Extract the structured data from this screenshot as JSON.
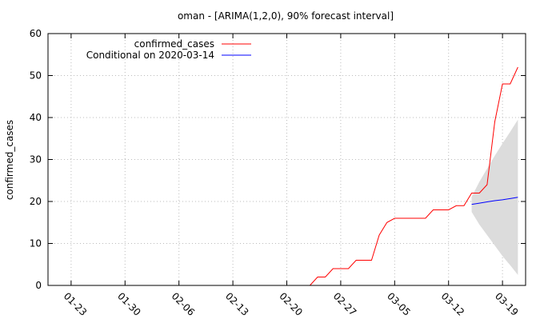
{
  "chart_data": {
    "type": "line",
    "title": "oman -  [ARIMA(1,2,0), 90% forecast interval]",
    "y_label": "confirmed_cases",
    "xlim": [
      "01-20",
      "03-22"
    ],
    "xticks": [
      "01-23",
      "01-30",
      "02-06",
      "02-13",
      "02-20",
      "02-27",
      "03-05",
      "03-12",
      "03-19"
    ],
    "ylim": [
      0,
      60
    ],
    "yticks": [
      0,
      10,
      20,
      30,
      40,
      50,
      60
    ],
    "grid": true,
    "legend": "top-left",
    "series": [
      {
        "name": "confirmed_cases",
        "color": "#ff0000",
        "x": [
          "02-23",
          "02-24",
          "02-25",
          "02-26",
          "02-27",
          "02-28",
          "02-29",
          "03-01",
          "03-02",
          "03-03",
          "03-04",
          "03-05",
          "03-06",
          "03-07",
          "03-08",
          "03-09",
          "03-10",
          "03-11",
          "03-12",
          "03-13",
          "03-14",
          "03-15",
          "03-16",
          "03-17",
          "03-18",
          "03-19",
          "03-20",
          "03-21"
        ],
        "values": [
          0,
          2,
          2,
          4,
          4,
          4,
          6,
          6,
          6,
          12,
          15,
          16,
          16,
          16,
          16,
          16,
          18,
          18,
          18,
          19,
          19,
          22,
          22,
          24,
          39,
          48,
          48,
          52
        ]
      },
      {
        "name": "Conditional on 2020-03-14",
        "color": "#0000ff",
        "band_color": "#dcdcdc",
        "x": [
          "03-15",
          "03-16",
          "03-17",
          "03-18",
          "03-19",
          "03-20",
          "03-21"
        ],
        "values": [
          19.3,
          19.6,
          19.9,
          20.2,
          20.4,
          20.7,
          21
        ],
        "lower": [
          17.5,
          14.5,
          12,
          9.5,
          7,
          4.8,
          2.5
        ],
        "upper": [
          21.1,
          24.7,
          27.8,
          30.9,
          33.8,
          36.6,
          39.5
        ]
      }
    ]
  }
}
